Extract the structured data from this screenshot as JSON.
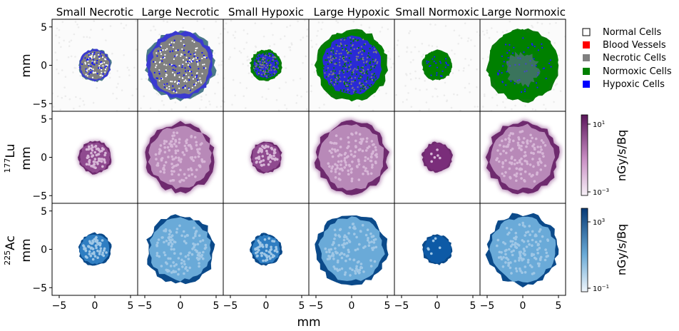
{
  "chart_data": {
    "type": "heatmap",
    "columns": [
      "Small Necrotic",
      "Large Necrotic",
      "Small Hypoxic",
      "Large Hypoxic",
      "Small Normoxic",
      "Large Normoxic"
    ],
    "rows": [
      {
        "label_iso": "",
        "label_mass": "",
        "label_unit": "mm",
        "kind": "cells"
      },
      {
        "label_iso": "177",
        "label_mass": "Lu",
        "label_unit": "mm",
        "kind": "lu"
      },
      {
        "label_iso": "225",
        "label_mass": "Ac",
        "label_unit": "mm",
        "kind": "ac"
      }
    ],
    "xlabel": "mm",
    "xlim": [
      -6,
      6
    ],
    "ylim": [
      -6,
      6
    ],
    "x_ticks": [
      -5,
      0,
      5
    ],
    "y_ticks": [
      5,
      0,
      -5
    ],
    "tumor_radius_mm": [
      2.3,
      4.8,
      2.2,
      5.0,
      2.1,
      5.0
    ],
    "legend": [
      {
        "label": "Normal Cells",
        "color": "#ffffff"
      },
      {
        "label": "Blood Vessels",
        "color": "#ff0000"
      },
      {
        "label": "Necrotic Cells",
        "color": "#808080"
      },
      {
        "label": "Normoxic Cells",
        "color": "#008000"
      },
      {
        "label": "Hypoxic Cells",
        "color": "#0000ff"
      }
    ],
    "colorbars": [
      {
        "label": "nGy/s/Bq",
        "scale": "log",
        "range": [
          0.001,
          10
        ],
        "tick_top": "10",
        "tick_top_exp": "1",
        "tick_bottom": "10",
        "tick_bottom_exp": "−3",
        "color_low": "#f7f1f7",
        "color_high": "#5a165a"
      },
      {
        "label": "nGy/s/Bq",
        "scale": "log",
        "range": [
          0.1,
          1000
        ],
        "tick_top": "10",
        "tick_top_exp": "3",
        "tick_bottom": "10",
        "tick_bottom_exp": "−1",
        "color_low": "#f0f6fc",
        "color_high": "#083a75"
      }
    ]
  }
}
